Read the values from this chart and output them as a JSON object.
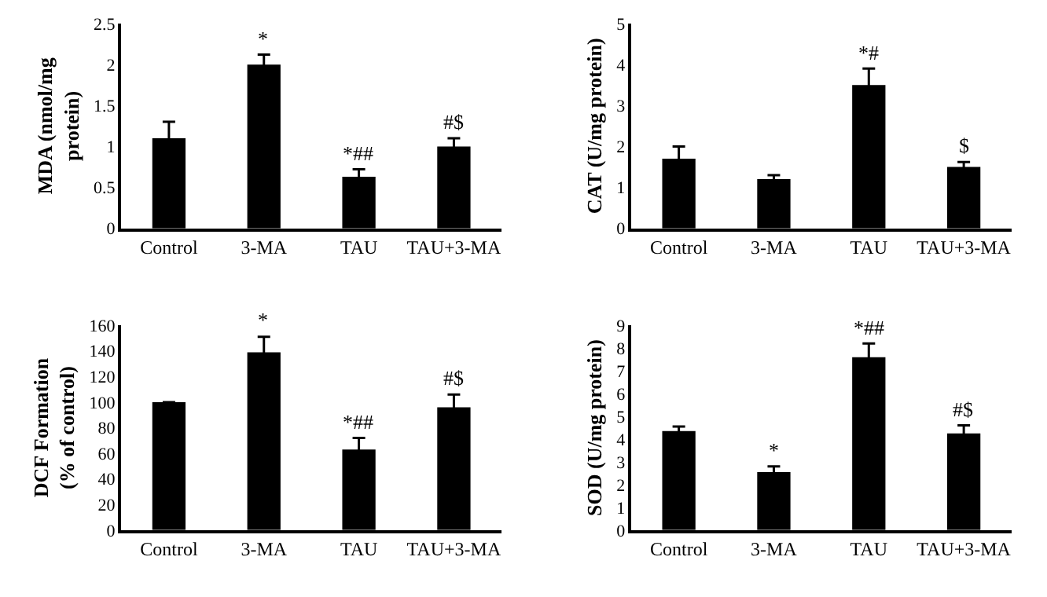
{
  "chart_data": [
    {
      "type": "bar",
      "ylabel": "MDA (nmol/mg protein)",
      "categories": [
        "Control",
        "3-MA",
        "TAU",
        "TAU+3-MA"
      ],
      "series": [
        {
          "color": "#000000",
          "values": [
            1.1,
            2.0,
            0.63,
            1.0
          ],
          "errors": [
            0.2,
            0.12,
            0.09,
            0.1
          ]
        }
      ],
      "ylim": [
        0,
        2.5
      ],
      "yticks": [
        0,
        0.5,
        1,
        1.5,
        2,
        2.5
      ],
      "grid": false,
      "annotations": [
        {
          "text": "*",
          "x": "3-MA",
          "y": 2.12
        },
        {
          "text": "*##",
          "x": "TAU",
          "y": 0.72
        },
        {
          "text": "#$",
          "x": "TAU+3-MA",
          "y": 1.1
        }
      ]
    },
    {
      "type": "bar",
      "ylabel": "CAT (U/mg protein)",
      "categories": [
        "Control",
        "3-MA",
        "TAU",
        "TAU+3-MA"
      ],
      "series": [
        {
          "color": "#000000",
          "values": [
            1.7,
            1.2,
            3.5,
            1.5
          ],
          "errors": [
            0.3,
            0.1,
            0.4,
            0.12
          ]
        }
      ],
      "ylim": [
        0,
        5
      ],
      "yticks": [
        0,
        1,
        2,
        3,
        4,
        5
      ],
      "grid": false,
      "annotations": [
        {
          "text": "*#",
          "x": "TAU",
          "y": 3.9
        },
        {
          "text": "$",
          "x": "TAU+3-MA",
          "y": 1.62
        }
      ]
    },
    {
      "type": "bar",
      "ylabel": "DCF Formation (% of control)",
      "categories": [
        "Control",
        "3-MA",
        "TAU",
        "TAU+3-MA"
      ],
      "series": [
        {
          "color": "#000000",
          "values": [
            100,
            139,
            63,
            96
          ],
          "errors": [
            null,
            12,
            9,
            10
          ]
        }
      ],
      "ylim": [
        0,
        160
      ],
      "yticks": [
        0,
        20,
        40,
        60,
        80,
        100,
        120,
        140,
        160
      ],
      "grid": false,
      "annotations": [
        {
          "text": "*",
          "x": "3-MA",
          "y": 151
        },
        {
          "text": "*##",
          "x": "TAU",
          "y": 72
        },
        {
          "text": "#$",
          "x": "TAU+3-MA",
          "y": 106
        }
      ]
    },
    {
      "type": "bar",
      "ylabel": "SOD (U/mg protein)",
      "categories": [
        "Control",
        "3-MA",
        "TAU",
        "TAU+3-MA"
      ],
      "series": [
        {
          "color": "#000000",
          "values": [
            4.35,
            2.55,
            7.6,
            4.25
          ],
          "errors": [
            0.2,
            0.25,
            0.6,
            0.35
          ]
        }
      ],
      "ylim": [
        0,
        9
      ],
      "yticks": [
        0,
        1,
        2,
        3,
        4,
        5,
        6,
        7,
        8,
        9
      ],
      "grid": false,
      "annotations": [
        {
          "text": "*",
          "x": "3-MA",
          "y": 2.8
        },
        {
          "text": "*##",
          "x": "TAU",
          "y": 8.2
        },
        {
          "text": "#$",
          "x": "TAU+3-MA",
          "y": 4.6
        }
      ]
    }
  ]
}
